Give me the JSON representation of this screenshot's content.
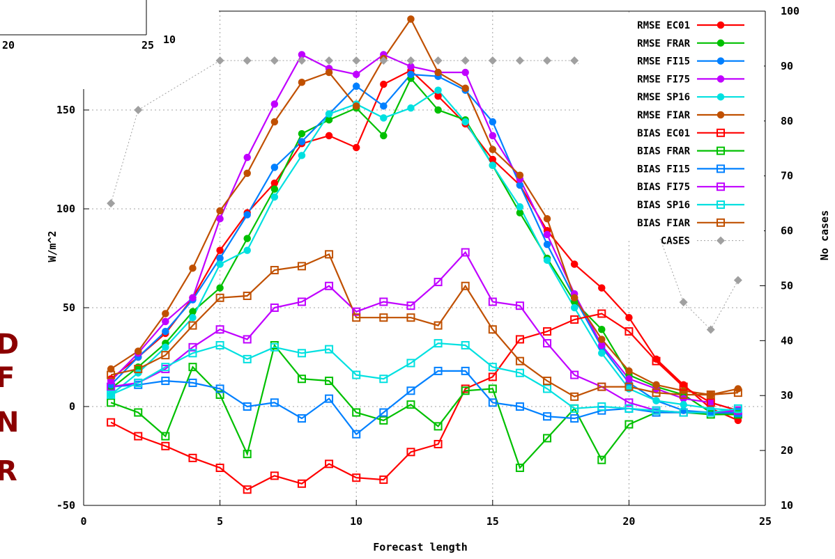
{
  "chart_data": {
    "type": "line",
    "xlabel": "Forecast length",
    "ylabel": "W/m^2",
    "y2label": "No cases",
    "xlim": [
      0,
      25
    ],
    "ylim": [
      -50,
      200
    ],
    "y2lim": [
      10,
      100
    ],
    "xticks": [
      0,
      5,
      10,
      15,
      20,
      25
    ],
    "yticks": [
      -50,
      0,
      50,
      100,
      150
    ],
    "y2ticks": [
      10,
      20,
      30,
      40,
      50,
      60,
      70,
      80,
      90,
      100
    ],
    "grid": true,
    "legend_position": "top-right",
    "x": [
      1,
      2,
      3,
      4,
      5,
      6,
      7,
      8,
      9,
      10,
      11,
      12,
      13,
      14,
      15,
      16,
      17,
      18,
      19,
      20,
      21,
      22,
      23,
      24
    ],
    "series": [
      {
        "name": "RMSE EC01",
        "color": "#ff0000",
        "marker": "filled",
        "axis": "left",
        "values": [
          14,
          25,
          37,
          55,
          79,
          98,
          113,
          133,
          137,
          131,
          163,
          170,
          157,
          143,
          125,
          112,
          89,
          72,
          60,
          45,
          24,
          11,
          -1,
          -7
        ]
      },
      {
        "name": "RMSE FRAR",
        "color": "#00c000",
        "marker": "filled",
        "axis": "left",
        "values": [
          9,
          20,
          32,
          48,
          60,
          85,
          110,
          138,
          145,
          151,
          137,
          166,
          150,
          145,
          122,
          98,
          75,
          53,
          39,
          16,
          10,
          6,
          -3,
          -4
        ]
      },
      {
        "name": "RMSE FI15",
        "color": "#0080ff",
        "marker": "filled",
        "axis": "left",
        "values": [
          11,
          25,
          38,
          54,
          75,
          97,
          121,
          134,
          148,
          162,
          152,
          168,
          167,
          160,
          144,
          112,
          82,
          55,
          30,
          12,
          3,
          -2,
          -3,
          -4
        ]
      },
      {
        "name": "RMSE FI75",
        "color": "#c000ff",
        "marker": "filled",
        "axis": "left",
        "values": [
          13,
          27,
          43,
          55,
          95,
          126,
          153,
          178,
          171,
          168,
          178,
          172,
          169,
          169,
          137,
          115,
          87,
          57,
          31,
          14,
          9,
          4,
          2,
          -2
        ]
      },
      {
        "name": "RMSE SP16",
        "color": "#00e0e0",
        "marker": "filled",
        "axis": "left",
        "values": [
          6,
          17,
          30,
          45,
          72,
          79,
          106,
          127,
          148,
          153,
          146,
          151,
          160,
          144,
          122,
          101,
          74,
          50,
          27,
          9,
          3,
          1,
          -1,
          -2
        ]
      },
      {
        "name": "RMSE FIAR",
        "color": "#c05000",
        "marker": "filled",
        "axis": "left",
        "values": [
          19,
          28,
          47,
          70,
          99,
          118,
          144,
          164,
          169,
          152,
          176,
          196,
          169,
          161,
          130,
          117,
          95,
          55,
          34,
          18,
          11,
          8,
          6,
          9
        ]
      },
      {
        "name": "BIAS EC01",
        "color": "#ff0000",
        "marker": "open",
        "axis": "left",
        "values": [
          -8,
          -15,
          -20,
          -26,
          -31,
          -42,
          -35,
          -39,
          -29,
          -36,
          -37,
          -23,
          -19,
          9,
          15,
          34,
          38,
          44,
          47,
          38,
          23,
          10,
          2,
          -2
        ]
      },
      {
        "name": "BIAS FRAR",
        "color": "#00c000",
        "marker": "open",
        "axis": "left",
        "values": [
          2,
          -3,
          -15,
          20,
          6,
          -24,
          31,
          14,
          13,
          -3,
          -7,
          1,
          -10,
          8,
          9,
          -31,
          -16,
          -1,
          -27,
          -9,
          -3,
          -3,
          -4,
          -4
        ]
      },
      {
        "name": "BIAS FI15",
        "color": "#0080ff",
        "marker": "open",
        "axis": "left",
        "values": [
          10,
          11,
          13,
          12,
          9,
          0,
          2,
          -6,
          4,
          -14,
          -3,
          8,
          18,
          18,
          2,
          0,
          -5,
          -6,
          -2,
          -1,
          -3,
          -3,
          -3,
          -3
        ]
      },
      {
        "name": "BIAS FI75",
        "color": "#c000ff",
        "marker": "open",
        "axis": "left",
        "values": [
          10,
          12,
          19,
          30,
          39,
          34,
          50,
          53,
          61,
          48,
          53,
          51,
          63,
          78,
          53,
          51,
          32,
          16,
          10,
          2,
          -2,
          -3,
          -3,
          -2
        ]
      },
      {
        "name": "BIAS SP16",
        "color": "#00e0e0",
        "marker": "open",
        "axis": "left",
        "values": [
          6,
          12,
          20,
          27,
          31,
          24,
          30,
          27,
          29,
          16,
          14,
          22,
          32,
          31,
          20,
          17,
          9,
          -1,
          0,
          -1,
          -2,
          -3,
          -3,
          -1
        ]
      },
      {
        "name": "BIAS FIAR",
        "color": "#c05000",
        "marker": "open",
        "axis": "left",
        "values": [
          16,
          19,
          26,
          41,
          55,
          56,
          69,
          71,
          77,
          45,
          45,
          45,
          41,
          61,
          39,
          23,
          13,
          5,
          10,
          10,
          7,
          6,
          6,
          7
        ]
      },
      {
        "name": "CASES",
        "color": "#a0a0a0",
        "marker": "diamond",
        "axis": "right",
        "values": [
          65,
          82,
          null,
          null,
          91,
          91,
          91,
          91,
          91,
          91,
          91,
          91,
          91,
          91,
          91,
          91,
          91,
          91,
          87,
          74,
          null,
          47,
          42,
          51
        ]
      }
    ]
  },
  "side_text": [
    "D",
    "F",
    "N",
    "R"
  ],
  "inset": {
    "xtick_left": "20",
    "xtick_right": "25",
    "ytick": "10"
  }
}
